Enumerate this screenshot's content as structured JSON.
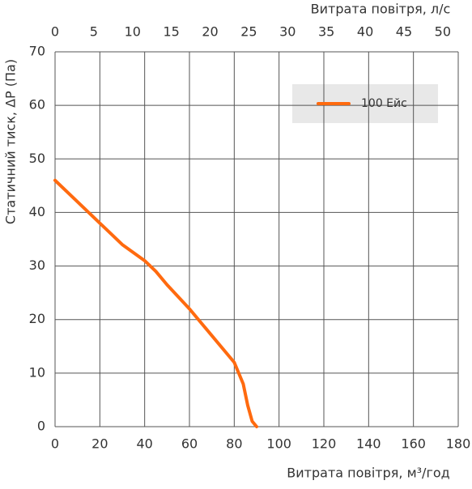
{
  "chart_data": {
    "type": "line",
    "xlabel": "Витрата повітря, м³/год",
    "x2label": "Витрата повітря, л/с",
    "ylabel": "Статичний тиск, ΔP (Па)",
    "xlim": [
      0,
      180
    ],
    "xticks": [
      0,
      20,
      40,
      60,
      80,
      100,
      120,
      140,
      160,
      180
    ],
    "x2lim": [
      0,
      52
    ],
    "x2ticks": [
      0,
      5,
      10,
      15,
      20,
      25,
      30,
      35,
      40,
      45,
      50
    ],
    "ylim": [
      0,
      70
    ],
    "yticks": [
      0,
      10,
      20,
      30,
      40,
      50,
      60,
      70
    ],
    "grid": true,
    "series": [
      {
        "name": "100 Ейс",
        "color": "#ff6a0f",
        "x": [
          0,
          10,
          20,
          30,
          40,
          45,
          50,
          60,
          70,
          80,
          84,
          86,
          88,
          90
        ],
        "values": [
          46,
          42,
          38,
          34,
          31,
          29,
          26.5,
          22,
          17,
          12,
          8,
          4,
          1,
          0
        ]
      }
    ]
  }
}
